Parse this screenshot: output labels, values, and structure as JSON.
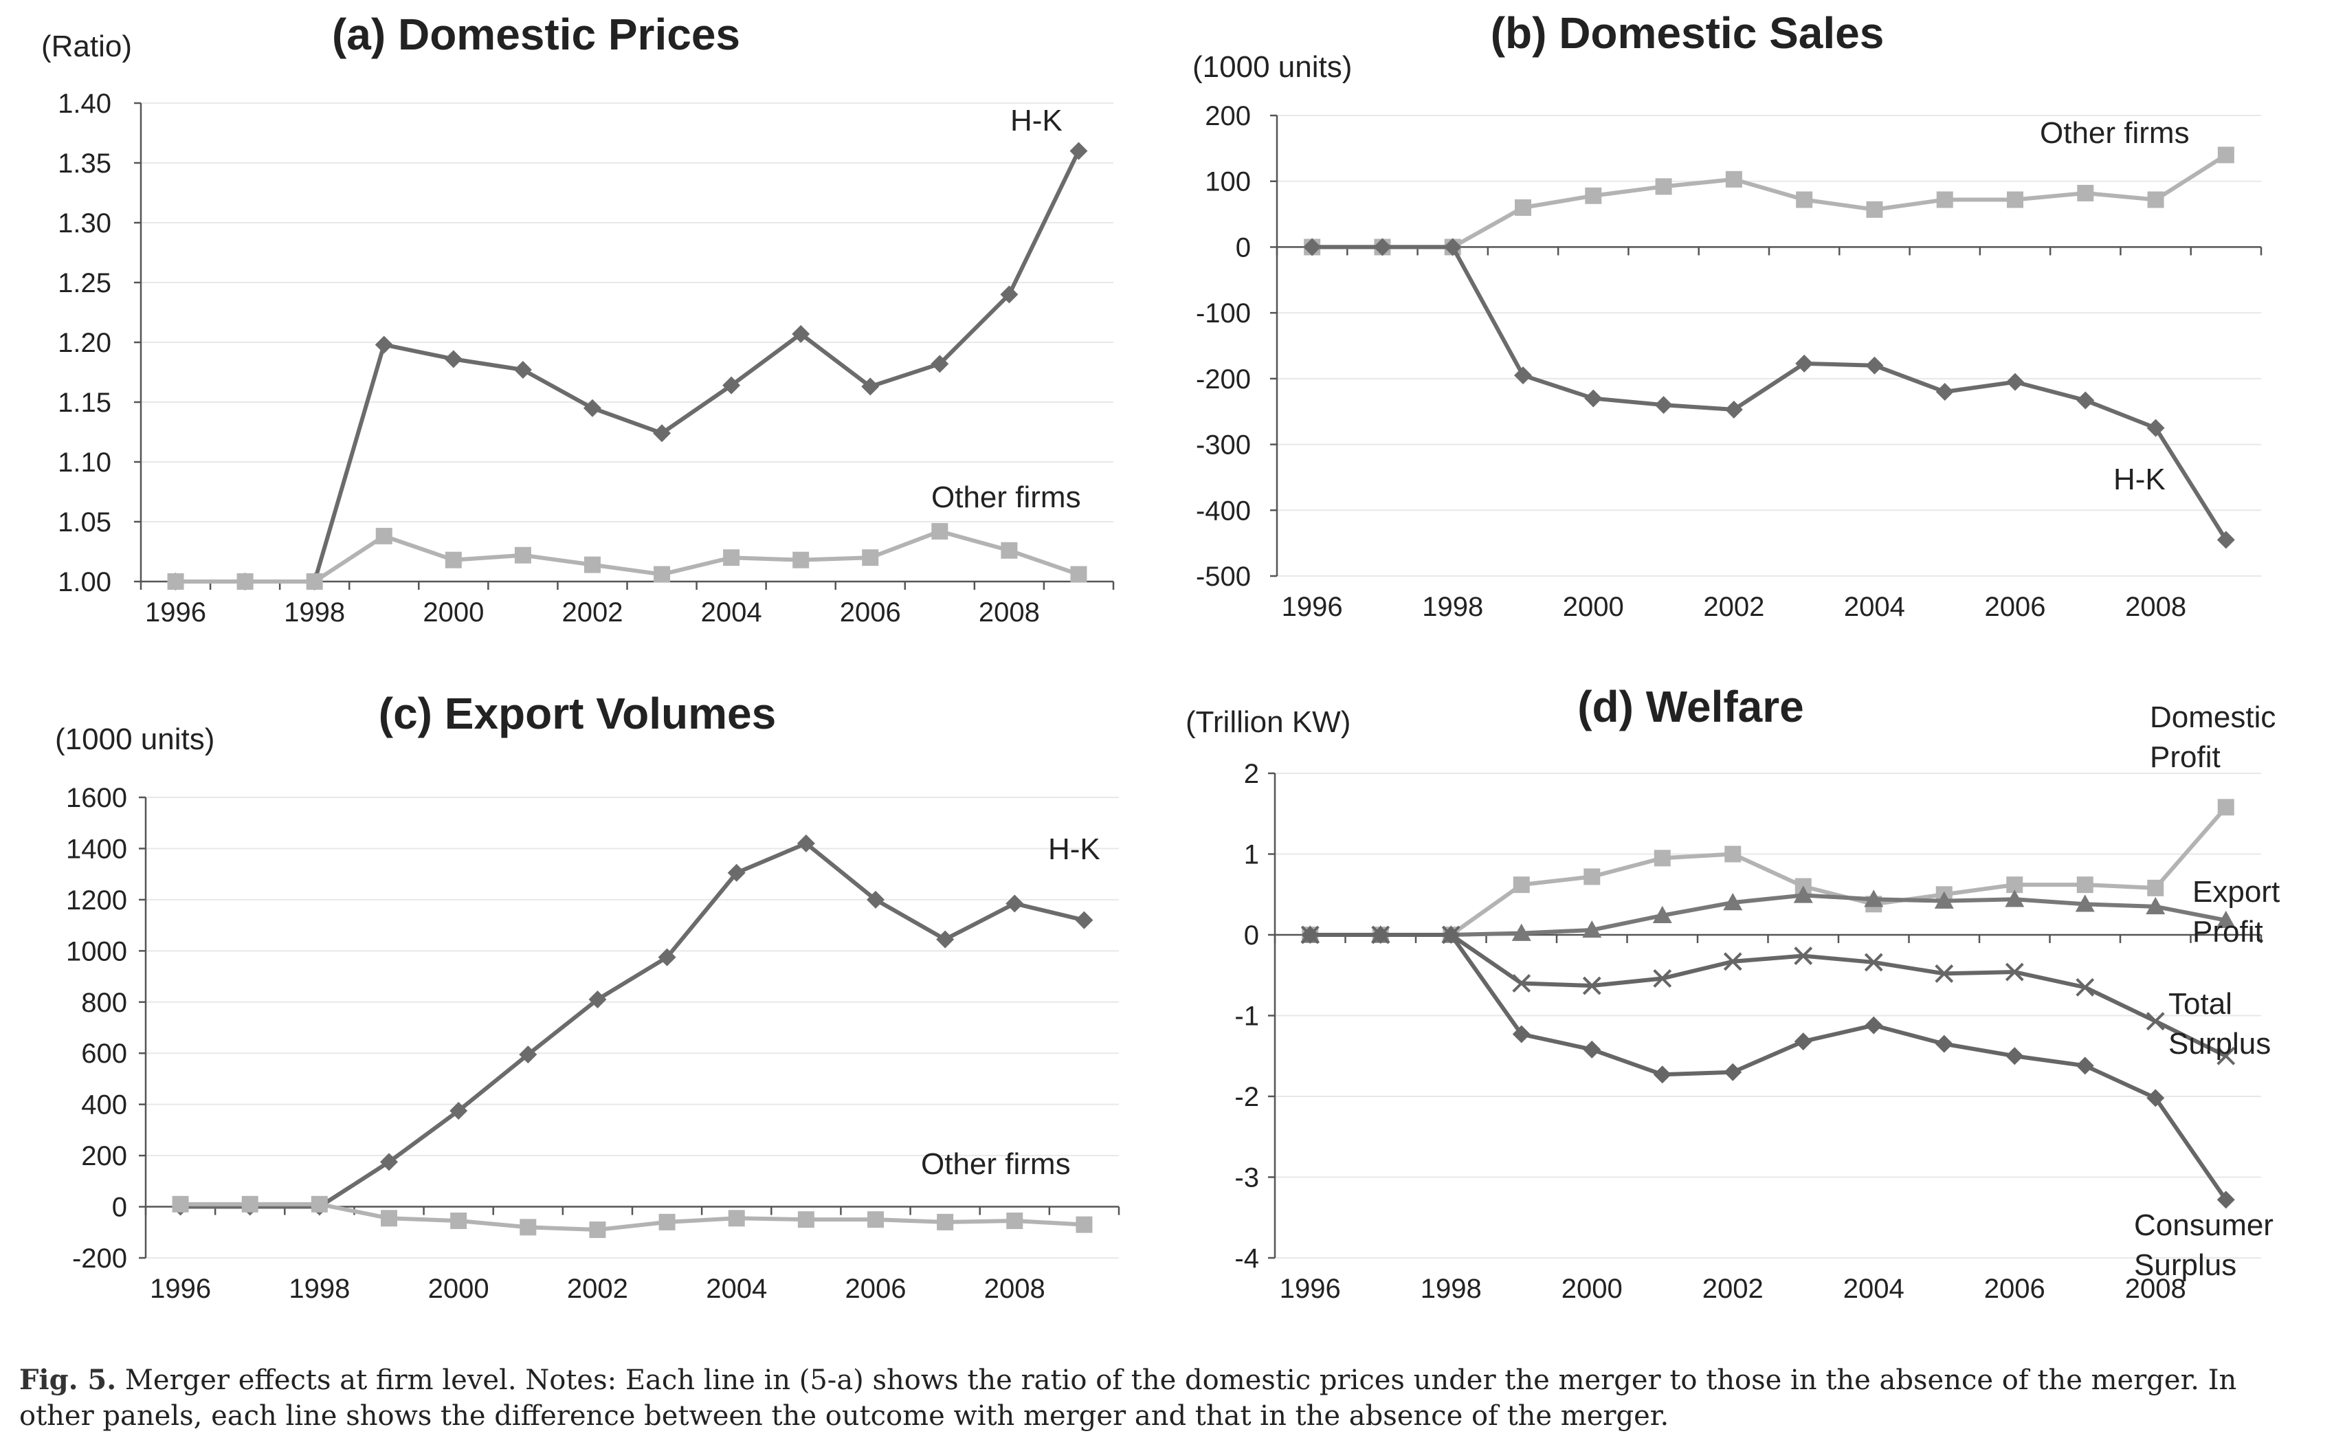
{
  "figure_caption": {
    "label": "Fig. 5.",
    "text": "Merger effects at firm level. Notes: Each line in (5-a) shows the ratio of the domestic prices under the merger to those in the absence of the merger. In other panels, each line shows the difference between the outcome with merger and that in the absence of the merger."
  },
  "colors": {
    "dark": "#6b6b6b",
    "light": "#b3b3b3"
  },
  "chart_data": [
    {
      "id": "a",
      "type": "line",
      "title": "(a) Domestic Prices",
      "unit_label": "(Ratio)",
      "x": [
        1996,
        1997,
        1998,
        1999,
        2000,
        2001,
        2002,
        2003,
        2004,
        2005,
        2006,
        2007,
        2008,
        2009
      ],
      "x_ticks": [
        1996,
        1998,
        2000,
        2002,
        2004,
        2006,
        2008
      ],
      "ylim": [
        1.0,
        1.4
      ],
      "y_ticks": [
        "1.00",
        "1.05",
        "1.10",
        "1.15",
        "1.20",
        "1.25",
        "1.30",
        "1.35",
        "1.40"
      ],
      "series": [
        {
          "name": "H-K",
          "marker": "diamond",
          "color": "#6b6b6b",
          "values": [
            1.0,
            1.0,
            1.0,
            1.198,
            1.186,
            1.177,
            1.145,
            1.124,
            1.164,
            1.207,
            1.163,
            1.182,
            1.24,
            1.36
          ]
        },
        {
          "name": "Other firms",
          "marker": "square",
          "color": "#b3b3b3",
          "values": [
            1.0,
            1.0,
            1.0,
            1.038,
            1.018,
            1.022,
            1.014,
            1.006,
            1.02,
            1.018,
            1.02,
            1.042,
            1.026,
            1.006
          ]
        }
      ]
    },
    {
      "id": "b",
      "type": "line",
      "title": "(b) Domestic Sales",
      "unit_label": "(1000 units)",
      "x": [
        1996,
        1997,
        1998,
        1999,
        2000,
        2001,
        2002,
        2003,
        2004,
        2005,
        2006,
        2007,
        2008,
        2009
      ],
      "x_ticks": [
        1996,
        1998,
        2000,
        2002,
        2004,
        2006,
        2008
      ],
      "ylim": [
        -500,
        200
      ],
      "y_ticks": [
        "-500",
        "-400",
        "-300",
        "-200",
        "-100",
        "0",
        "100",
        "200"
      ],
      "series": [
        {
          "name": "Other firms",
          "marker": "square",
          "color": "#b3b3b3",
          "values": [
            0,
            0,
            0,
            60,
            78,
            92,
            103,
            72,
            57,
            72,
            72,
            82,
            72,
            140
          ]
        },
        {
          "name": "H-K",
          "marker": "diamond",
          "color": "#6b6b6b",
          "values": [
            0,
            0,
            0,
            -195,
            -230,
            -240,
            -247,
            -177,
            -180,
            -220,
            -205,
            -233,
            -275,
            -445
          ]
        }
      ]
    },
    {
      "id": "c",
      "type": "line",
      "title": "(c) Export Volumes",
      "unit_label": "(1000 units)",
      "x": [
        1996,
        1997,
        1998,
        1999,
        2000,
        2001,
        2002,
        2003,
        2004,
        2005,
        2006,
        2007,
        2008,
        2009
      ],
      "x_ticks": [
        1996,
        1998,
        2000,
        2002,
        2004,
        2006,
        2008
      ],
      "ylim": [
        -200,
        1600
      ],
      "y_ticks": [
        "-200",
        "0",
        "200",
        "400",
        "600",
        "800",
        "1000",
        "1200",
        "1400",
        "1600"
      ],
      "series": [
        {
          "name": "H-K",
          "marker": "diamond",
          "color": "#6b6b6b",
          "values": [
            0,
            0,
            0,
            175,
            375,
            595,
            810,
            975,
            1305,
            1420,
            1200,
            1045,
            1185,
            1120
          ]
        },
        {
          "name": "Other firms",
          "marker": "square",
          "color": "#b3b3b3",
          "values": [
            10,
            10,
            10,
            -45,
            -55,
            -80,
            -90,
            -60,
            -45,
            -50,
            -50,
            -60,
            -55,
            -70
          ]
        }
      ]
    },
    {
      "id": "d",
      "type": "line",
      "title": "(d) Welfare",
      "unit_label": "(Trillion KW)",
      "x": [
        1996,
        1997,
        1998,
        1999,
        2000,
        2001,
        2002,
        2003,
        2004,
        2005,
        2006,
        2007,
        2008,
        2009
      ],
      "x_ticks": [
        1996,
        1998,
        2000,
        2002,
        2004,
        2006,
        2008
      ],
      "ylim": [
        -4,
        2
      ],
      "y_ticks": [
        "-4",
        "-3",
        "-2",
        "-1",
        "0",
        "1",
        "2"
      ],
      "series": [
        {
          "name": "Domestic Profit",
          "label_lines": [
            "Domestic",
            "Profit"
          ],
          "marker": "square",
          "color": "#b3b3b3",
          "values": [
            0,
            0,
            0,
            0.62,
            0.72,
            0.95,
            1.0,
            0.6,
            0.38,
            0.5,
            0.62,
            0.62,
            0.58,
            1.58
          ]
        },
        {
          "name": "Export Profit",
          "label_lines": [
            "Export",
            "Profit"
          ],
          "marker": "triangle",
          "color": "#787878",
          "values": [
            0,
            0,
            0,
            0.02,
            0.06,
            0.24,
            0.4,
            0.49,
            0.44,
            0.42,
            0.44,
            0.38,
            0.35,
            0.18
          ]
        },
        {
          "name": "Total Surplus",
          "label_lines": [
            "Total",
            "Surplus"
          ],
          "marker": "x",
          "color": "#666666",
          "values": [
            0,
            0,
            0,
            -0.6,
            -0.63,
            -0.54,
            -0.33,
            -0.26,
            -0.34,
            -0.48,
            -0.46,
            -0.65,
            -1.07,
            -1.5
          ]
        },
        {
          "name": "Consumer Surplus",
          "label_lines": [
            "Consumer",
            "Surplus"
          ],
          "marker": "diamond",
          "color": "#666666",
          "values": [
            0,
            0,
            0,
            -1.23,
            -1.42,
            -1.73,
            -1.7,
            -1.32,
            -1.12,
            -1.35,
            -1.5,
            -1.62,
            -2.02,
            -3.28
          ]
        }
      ]
    }
  ]
}
